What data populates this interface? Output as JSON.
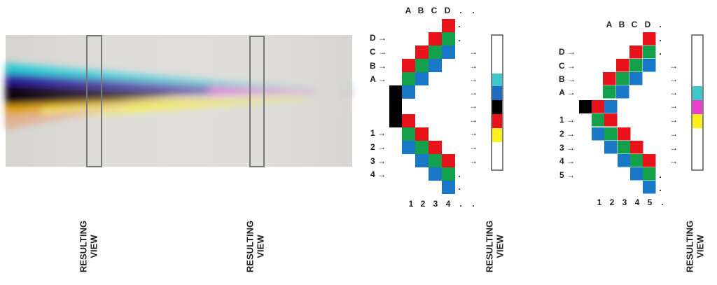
{
  "captions": [
    {
      "line1": "RESULTING",
      "line2": "VIEW"
    },
    {
      "line1": "RESULTING",
      "line2": "VIEW"
    },
    {
      "line1": "RESULTING",
      "line2": "VIEW"
    },
    {
      "line1": "RESULTING",
      "line2": "VIEW"
    }
  ],
  "diagram_1": {
    "top_labels": [
      "A",
      "B",
      "C",
      "D",
      ".",
      "."
    ],
    "left_labels": [
      "D →",
      "C →",
      "B →",
      "A →",
      "1 →",
      "2 →",
      "3 →",
      "4 →"
    ],
    "right_arrows": [
      "→",
      "→",
      "→",
      "→",
      "→",
      "→",
      "→",
      "→",
      "→"
    ],
    "side_dots": [
      ".",
      ".",
      ".",
      "."
    ],
    "bottom_labels": [
      "1",
      "2",
      "3",
      "4",
      ".",
      "."
    ]
  },
  "diagram_2": {
    "top_labels": [
      "A",
      "B",
      "C",
      "D",
      "."
    ],
    "left_labels": [
      "D →",
      "C →",
      "B →",
      "A →",
      "1 →",
      "2 →",
      "3 →",
      "4 →",
      "5 →"
    ],
    "right_arrows": [
      "→",
      "→",
      "→",
      "→",
      "→",
      "→",
      "→",
      "→"
    ],
    "side_dots": [
      ".",
      ".",
      ".",
      "."
    ],
    "bottom_labels": [
      "1",
      "2",
      "3",
      "4",
      "5",
      "."
    ]
  }
}
